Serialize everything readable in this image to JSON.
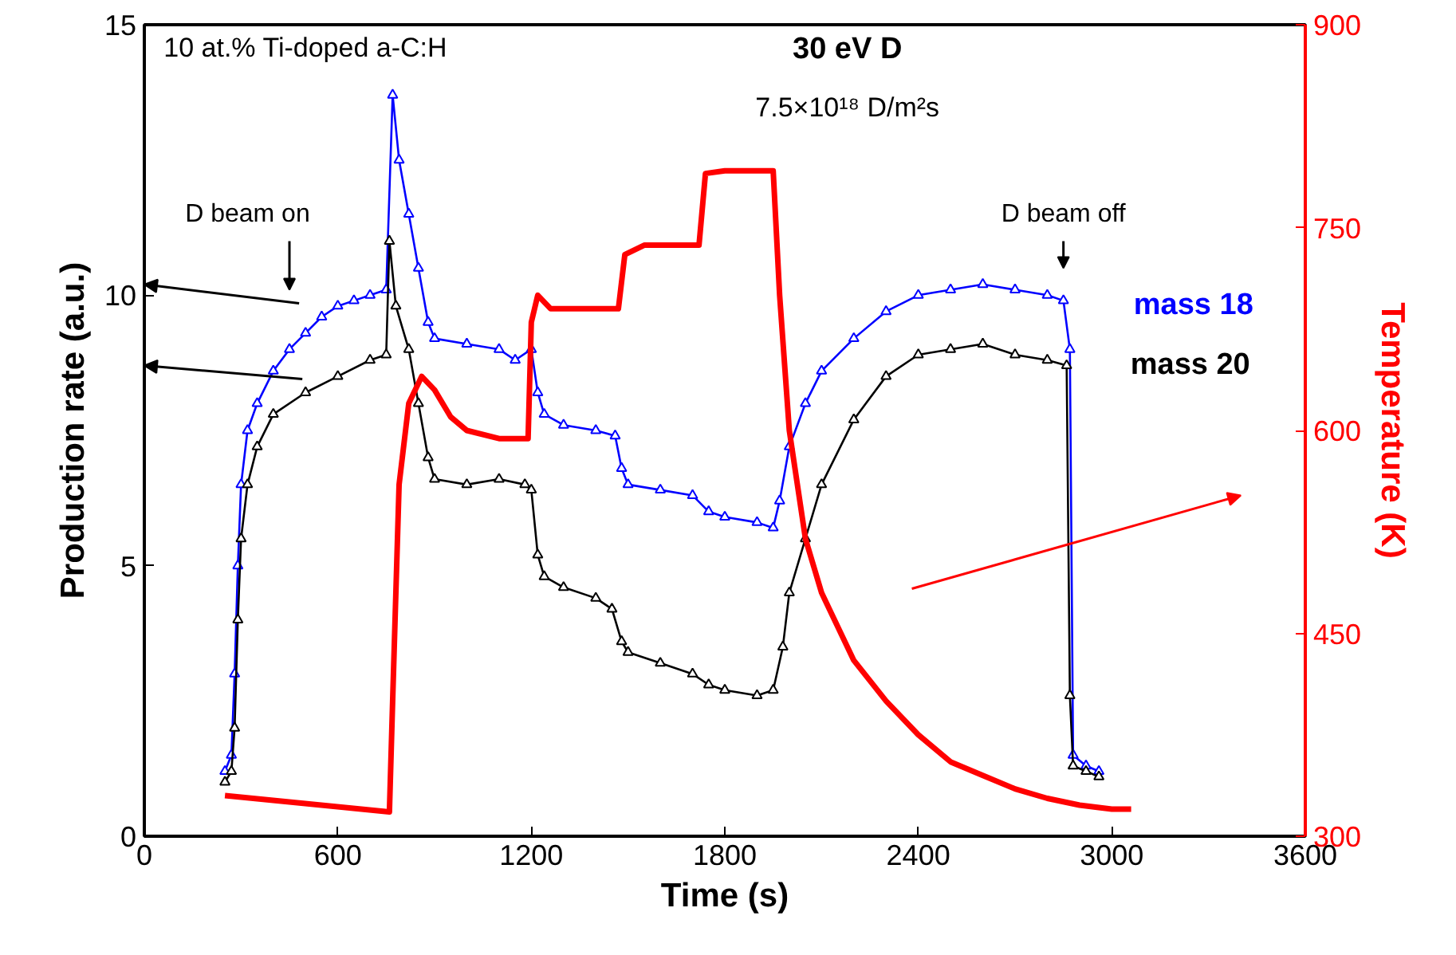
{
  "chart_data": {
    "type": "line",
    "xlabel": "Time (s)",
    "ylabel": "Production rate (a.u.)",
    "y2label": "Temperature (K)",
    "xlim": [
      0,
      3600
    ],
    "xticks": [
      0,
      600,
      1200,
      1800,
      2400,
      3000,
      3600
    ],
    "ylim": [
      0,
      15
    ],
    "yticks": [
      0,
      5,
      10,
      15
    ],
    "y2lim": [
      300,
      900
    ],
    "y2ticks": [
      300,
      450,
      600,
      750,
      900
    ],
    "grid": false,
    "legend": false,
    "annotations": [
      "10 at.% Ti-doped a-C:H",
      "30 eV D",
      "7.5×10¹⁸ D/m²s",
      "D beam on",
      {
        "text": "D beam off",
        "x": 2850,
        "y": 9.9
      }
    ],
    "series": [
      {
        "name": "mass 18",
        "color": "#0000ff",
        "marker": "triangle",
        "x": [
          250,
          270,
          280,
          290,
          300,
          320,
          350,
          400,
          450,
          500,
          550,
          600,
          650,
          700,
          750,
          770,
          790,
          820,
          850,
          880,
          900,
          1000,
          1100,
          1150,
          1200,
          1220,
          1240,
          1300,
          1400,
          1460,
          1480,
          1500,
          1600,
          1700,
          1750,
          1800,
          1900,
          1950,
          1970,
          2000,
          2050,
          2100,
          2200,
          2300,
          2400,
          2500,
          2600,
          2700,
          2800,
          2850,
          2870,
          2880,
          2920,
          2960
        ],
        "values": [
          1.2,
          1.5,
          3,
          5,
          6.5,
          7.5,
          8.0,
          8.6,
          9.0,
          9.3,
          9.6,
          9.8,
          9.9,
          10.0,
          10.1,
          13.7,
          12.5,
          11.5,
          10.5,
          9.5,
          9.2,
          9.1,
          9.0,
          8.8,
          9.0,
          8.2,
          7.8,
          7.6,
          7.5,
          7.4,
          6.8,
          6.5,
          6.4,
          6.3,
          6.0,
          5.9,
          5.8,
          5.7,
          6.2,
          7.2,
          8.0,
          8.6,
          9.2,
          9.7,
          10.0,
          10.1,
          10.2,
          10.1,
          10.0,
          9.9,
          9.0,
          1.5,
          1.3,
          1.2
        ]
      },
      {
        "name": "mass 20",
        "color": "#000000",
        "marker": "triangle",
        "x": [
          250,
          270,
          280,
          290,
          300,
          320,
          350,
          400,
          500,
          600,
          700,
          750,
          760,
          780,
          820,
          850,
          880,
          900,
          1000,
          1100,
          1180,
          1200,
          1220,
          1240,
          1300,
          1400,
          1450,
          1480,
          1500,
          1600,
          1700,
          1750,
          1800,
          1900,
          1950,
          1980,
          2000,
          2050,
          2100,
          2200,
          2300,
          2400,
          2500,
          2600,
          2700,
          2800,
          2860,
          2870,
          2880,
          2920,
          2960
        ],
        "values": [
          1.0,
          1.2,
          2,
          4,
          5.5,
          6.5,
          7.2,
          7.8,
          8.2,
          8.5,
          8.8,
          8.9,
          11.0,
          9.8,
          9.0,
          8.0,
          7.0,
          6.6,
          6.5,
          6.6,
          6.5,
          6.4,
          5.2,
          4.8,
          4.6,
          4.4,
          4.2,
          3.6,
          3.4,
          3.2,
          3.0,
          2.8,
          2.7,
          2.6,
          2.7,
          3.5,
          4.5,
          5.5,
          6.5,
          7.7,
          8.5,
          8.9,
          9.0,
          9.1,
          8.9,
          8.8,
          8.7,
          2.6,
          1.3,
          1.2,
          1.1
        ]
      },
      {
        "color": "#ff0000",
        "axis": "y2",
        "marker": "none",
        "x": [
          250,
          760,
          770,
          790,
          820,
          860,
          900,
          950,
          1000,
          1100,
          1190,
          1200,
          1220,
          1260,
          1470,
          1490,
          1550,
          1720,
          1740,
          1800,
          1950,
          1970,
          2000,
          2050,
          2100,
          2200,
          2300,
          2400,
          2500,
          2600,
          2700,
          2800,
          2900,
          3000,
          3060
        ],
        "values": [
          330,
          318,
          400,
          560,
          620,
          640,
          630,
          610,
          600,
          594,
          594,
          680,
          700,
          690,
          690,
          730,
          737,
          737,
          790,
          792,
          792,
          700,
          600,
          520,
          480,
          430,
          400,
          375,
          355,
          345,
          335,
          328,
          323,
          320,
          320
        ]
      }
    ]
  }
}
